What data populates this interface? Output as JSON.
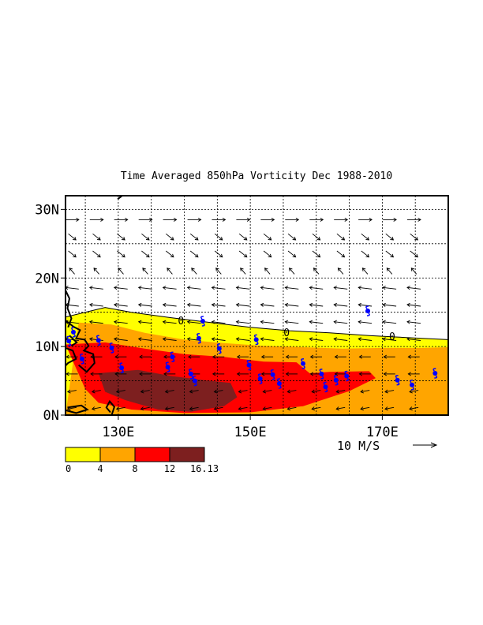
{
  "title": "Time Averaged 850hPa Vorticity  Dec 1988-2010",
  "map": {
    "lon_range": [
      122,
      180
    ],
    "lat_range": [
      0,
      32
    ],
    "lat_labels": [
      "0N",
      "10N",
      "20N",
      "30N"
    ],
    "lat_values": [
      0,
      10,
      20,
      30
    ],
    "lon_labels": [
      "130E",
      "150E",
      "170E"
    ],
    "lon_values": [
      130,
      150,
      170
    ],
    "contour_label": "0",
    "grid": true
  },
  "vector_scale": {
    "label": "10 M/S"
  },
  "colorbar": {
    "ticks": [
      "0",
      "4",
      "8",
      "12",
      "16.13"
    ],
    "colors": [
      "#ffff00",
      "#ffa500",
      "#ff0000",
      "#7d1f1f"
    ]
  },
  "storm_symbol_color": "#0000ff",
  "storm_positions": [
    [
      122.5,
      10.8
    ],
    [
      124.5,
      8.2
    ],
    [
      127,
      10.9
    ],
    [
      129,
      9.8
    ],
    [
      130.5,
      6.9
    ],
    [
      137.5,
      7.0
    ],
    [
      138.2,
      8.5
    ],
    [
      141,
      6.0
    ],
    [
      141.6,
      5.0
    ],
    [
      142.2,
      11.2
    ],
    [
      142.8,
      13.7
    ],
    [
      145.3,
      9.7
    ],
    [
      149.8,
      7.3
    ],
    [
      151.5,
      5.3
    ],
    [
      153.4,
      5.9
    ],
    [
      150.9,
      11.0
    ],
    [
      154.4,
      4.6
    ],
    [
      158,
      7.5
    ],
    [
      160.8,
      6.0
    ],
    [
      161.4,
      4.1
    ],
    [
      163,
      5.1
    ],
    [
      164.6,
      5.7
    ],
    [
      167.8,
      15.2
    ],
    [
      172.3,
      5.1
    ],
    [
      174.5,
      4.4
    ],
    [
      178,
      6.1
    ],
    [
      123.2,
      12.1
    ]
  ],
  "vorticity_bands": {
    "v0_north": [
      [
        122,
        14.3
      ],
      [
        128,
        15.7
      ],
      [
        132,
        15.0
      ],
      [
        138,
        14.2
      ],
      [
        144,
        13.5
      ],
      [
        150,
        12.8
      ],
      [
        156,
        12.3
      ],
      [
        162,
        12.0
      ],
      [
        168,
        11.6
      ],
      [
        172,
        11.4
      ],
      [
        176,
        11.2
      ],
      [
        180,
        11.0
      ]
    ],
    "v0_south": [
      [
        180,
        2.0
      ],
      [
        170,
        2.0
      ],
      [
        160,
        1.5
      ],
      [
        150,
        1.0
      ],
      [
        140,
        0.5
      ],
      [
        130,
        0.3
      ],
      [
        122,
        0.3
      ]
    ],
    "v4_north": [
      [
        124,
        13.5
      ],
      [
        129,
        13.2
      ],
      [
        134,
        12.0
      ],
      [
        140,
        11.0
      ],
      [
        146,
        10.5
      ],
      [
        152,
        10.1
      ],
      [
        158,
        9.9
      ],
      [
        164,
        9.7
      ],
      [
        170,
        9.8
      ],
      [
        176,
        9.8
      ],
      [
        180,
        9.9
      ]
    ],
    "v4_south": [
      [
        180,
        0.0
      ],
      [
        122,
        0.0
      ]
    ],
    "v8_north": [
      [
        122,
        10.3
      ],
      [
        128,
        10.6
      ],
      [
        134,
        9.7
      ],
      [
        140,
        8.9
      ],
      [
        146,
        8.5
      ],
      [
        152,
        7.8
      ],
      [
        157,
        7.7
      ],
      [
        159,
        6.1
      ],
      [
        162,
        6.3
      ],
      [
        168,
        6.4
      ],
      [
        169,
        5.4
      ],
      [
        165,
        3.5
      ],
      [
        158,
        1.3
      ],
      [
        150,
        0.4
      ],
      [
        140,
        0.3
      ],
      [
        132,
        0.8
      ],
      [
        127,
        1.8
      ],
      [
        125,
        3.8
      ]
    ],
    "v12_north": [
      [
        127,
        6.1
      ],
      [
        133,
        6.6
      ],
      [
        138,
        5.7
      ],
      [
        143,
        5.1
      ],
      [
        147,
        4.7
      ],
      [
        148,
        2.6
      ],
      [
        146,
        1.3
      ],
      [
        141,
        0.5
      ],
      [
        136,
        0.8
      ],
      [
        131,
        2.2
      ],
      [
        128,
        3.4
      ]
    ]
  }
}
